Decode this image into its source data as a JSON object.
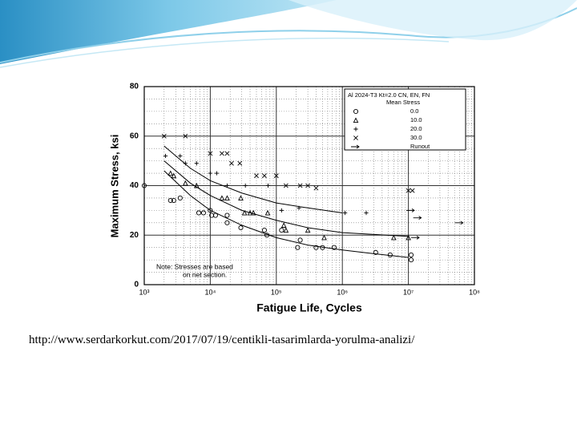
{
  "chart_data": {
    "type": "scatter",
    "ylabel": "Maximum Stress, ksi",
    "xlabel": "Fatigue Life, Cycles",
    "x_log": true,
    "grid": true,
    "minor_grid": true,
    "xlim": [
      1000,
      100000000
    ],
    "ylim": [
      0,
      80
    ],
    "xticks": [
      {
        "value": 1000,
        "label": "10³"
      },
      {
        "value": 10000,
        "label": "10⁴"
      },
      {
        "value": 100000,
        "label": "10⁵"
      },
      {
        "value": 1000000,
        "label": "10⁶"
      },
      {
        "value": 10000000,
        "label": "10⁷"
      },
      {
        "value": 100000000,
        "label": "10⁸"
      }
    ],
    "yticks": [
      0,
      20,
      40,
      60,
      80
    ],
    "legend_title": "Al 2024-T3  Kt=2.0  CN, EN, FN",
    "legend_subtitle": "Mean Stress",
    "legend_position": "upper right",
    "note": "Note:  Stresses are based",
    "note_line2": "on net section.",
    "series": [
      {
        "name": "0.0",
        "marker": "circle",
        "color": "#000000",
        "x": [
          1000,
          2500,
          2800,
          3500,
          6700,
          7900,
          10000,
          10500,
          12000,
          18000,
          18000,
          29000,
          66000,
          72000,
          120000,
          210000,
          230000,
          400000,
          500000,
          750000,
          3200000,
          5300000,
          11000000,
          11000000
        ],
        "values": [
          40,
          34,
          34,
          35,
          29,
          29,
          30,
          28,
          28,
          28,
          25,
          23,
          22,
          20,
          22,
          15,
          18,
          15,
          15,
          15,
          13,
          12,
          12,
          10
        ]
      },
      {
        "name": "10.0",
        "marker": "triangle",
        "color": "#000000",
        "x": [
          2500,
          2800,
          4200,
          6200,
          15000,
          18000,
          29000,
          33000,
          40000,
          45000,
          74000,
          130000,
          140000,
          300000,
          530000,
          6000000,
          10000000
        ],
        "values": [
          45,
          44,
          41,
          40,
          35,
          35,
          35,
          29,
          29,
          29,
          29,
          24,
          22,
          22,
          19,
          19,
          19
        ]
      },
      {
        "name": "20.0",
        "marker": "plus",
        "color": "#000000",
        "x": [
          2100,
          3500,
          4200,
          6200,
          10000,
          12500,
          18000,
          34000,
          75000,
          120000,
          220000,
          1100000,
          2300000
        ],
        "values": [
          52,
          52,
          49,
          49,
          45,
          45,
          40,
          40,
          40,
          30,
          31,
          29,
          29
        ]
      },
      {
        "name": "30.0",
        "marker": "cross",
        "color": "#000000",
        "x": [
          2000,
          4200,
          10000,
          15000,
          18000,
          21000,
          28000,
          50000,
          66000,
          100000,
          140000,
          230000,
          300000,
          400000,
          10000000,
          11500000
        ],
        "values": [
          60,
          60,
          53,
          53,
          53,
          49,
          49,
          44,
          44,
          44,
          40,
          40,
          40,
          39,
          38,
          38
        ]
      },
      {
        "name": "Runout",
        "marker": "arrow",
        "color": "#000000",
        "x": [
          11000000,
          13000000,
          14000000,
          60000000
        ],
        "values": [
          30,
          19,
          27,
          25
        ]
      }
    ],
    "curves": [
      {
        "color": "#000000",
        "x": [
          2000,
          5000,
          10000,
          30000,
          100000,
          300000,
          1000000
        ],
        "values": [
          56,
          47,
          42,
          37,
          33,
          31,
          29
        ]
      },
      {
        "color": "#000000",
        "x": [
          2000,
          5000,
          10000,
          30000,
          100000,
          300000,
          1000000,
          10000000
        ],
        "values": [
          50,
          41,
          36,
          30,
          26,
          23,
          21,
          19.5
        ]
      },
      {
        "color": "#000000",
        "x": [
          2000,
          5000,
          10000,
          30000,
          100000,
          300000,
          1000000,
          3000000,
          10000000
        ],
        "values": [
          46,
          36,
          30,
          24,
          19,
          16,
          14,
          12.5,
          11
        ]
      }
    ]
  },
  "caption": "http://www.serdarkorkut.com/2017/07/19/centikli-tasarimlarda-yorulma-analizi/"
}
